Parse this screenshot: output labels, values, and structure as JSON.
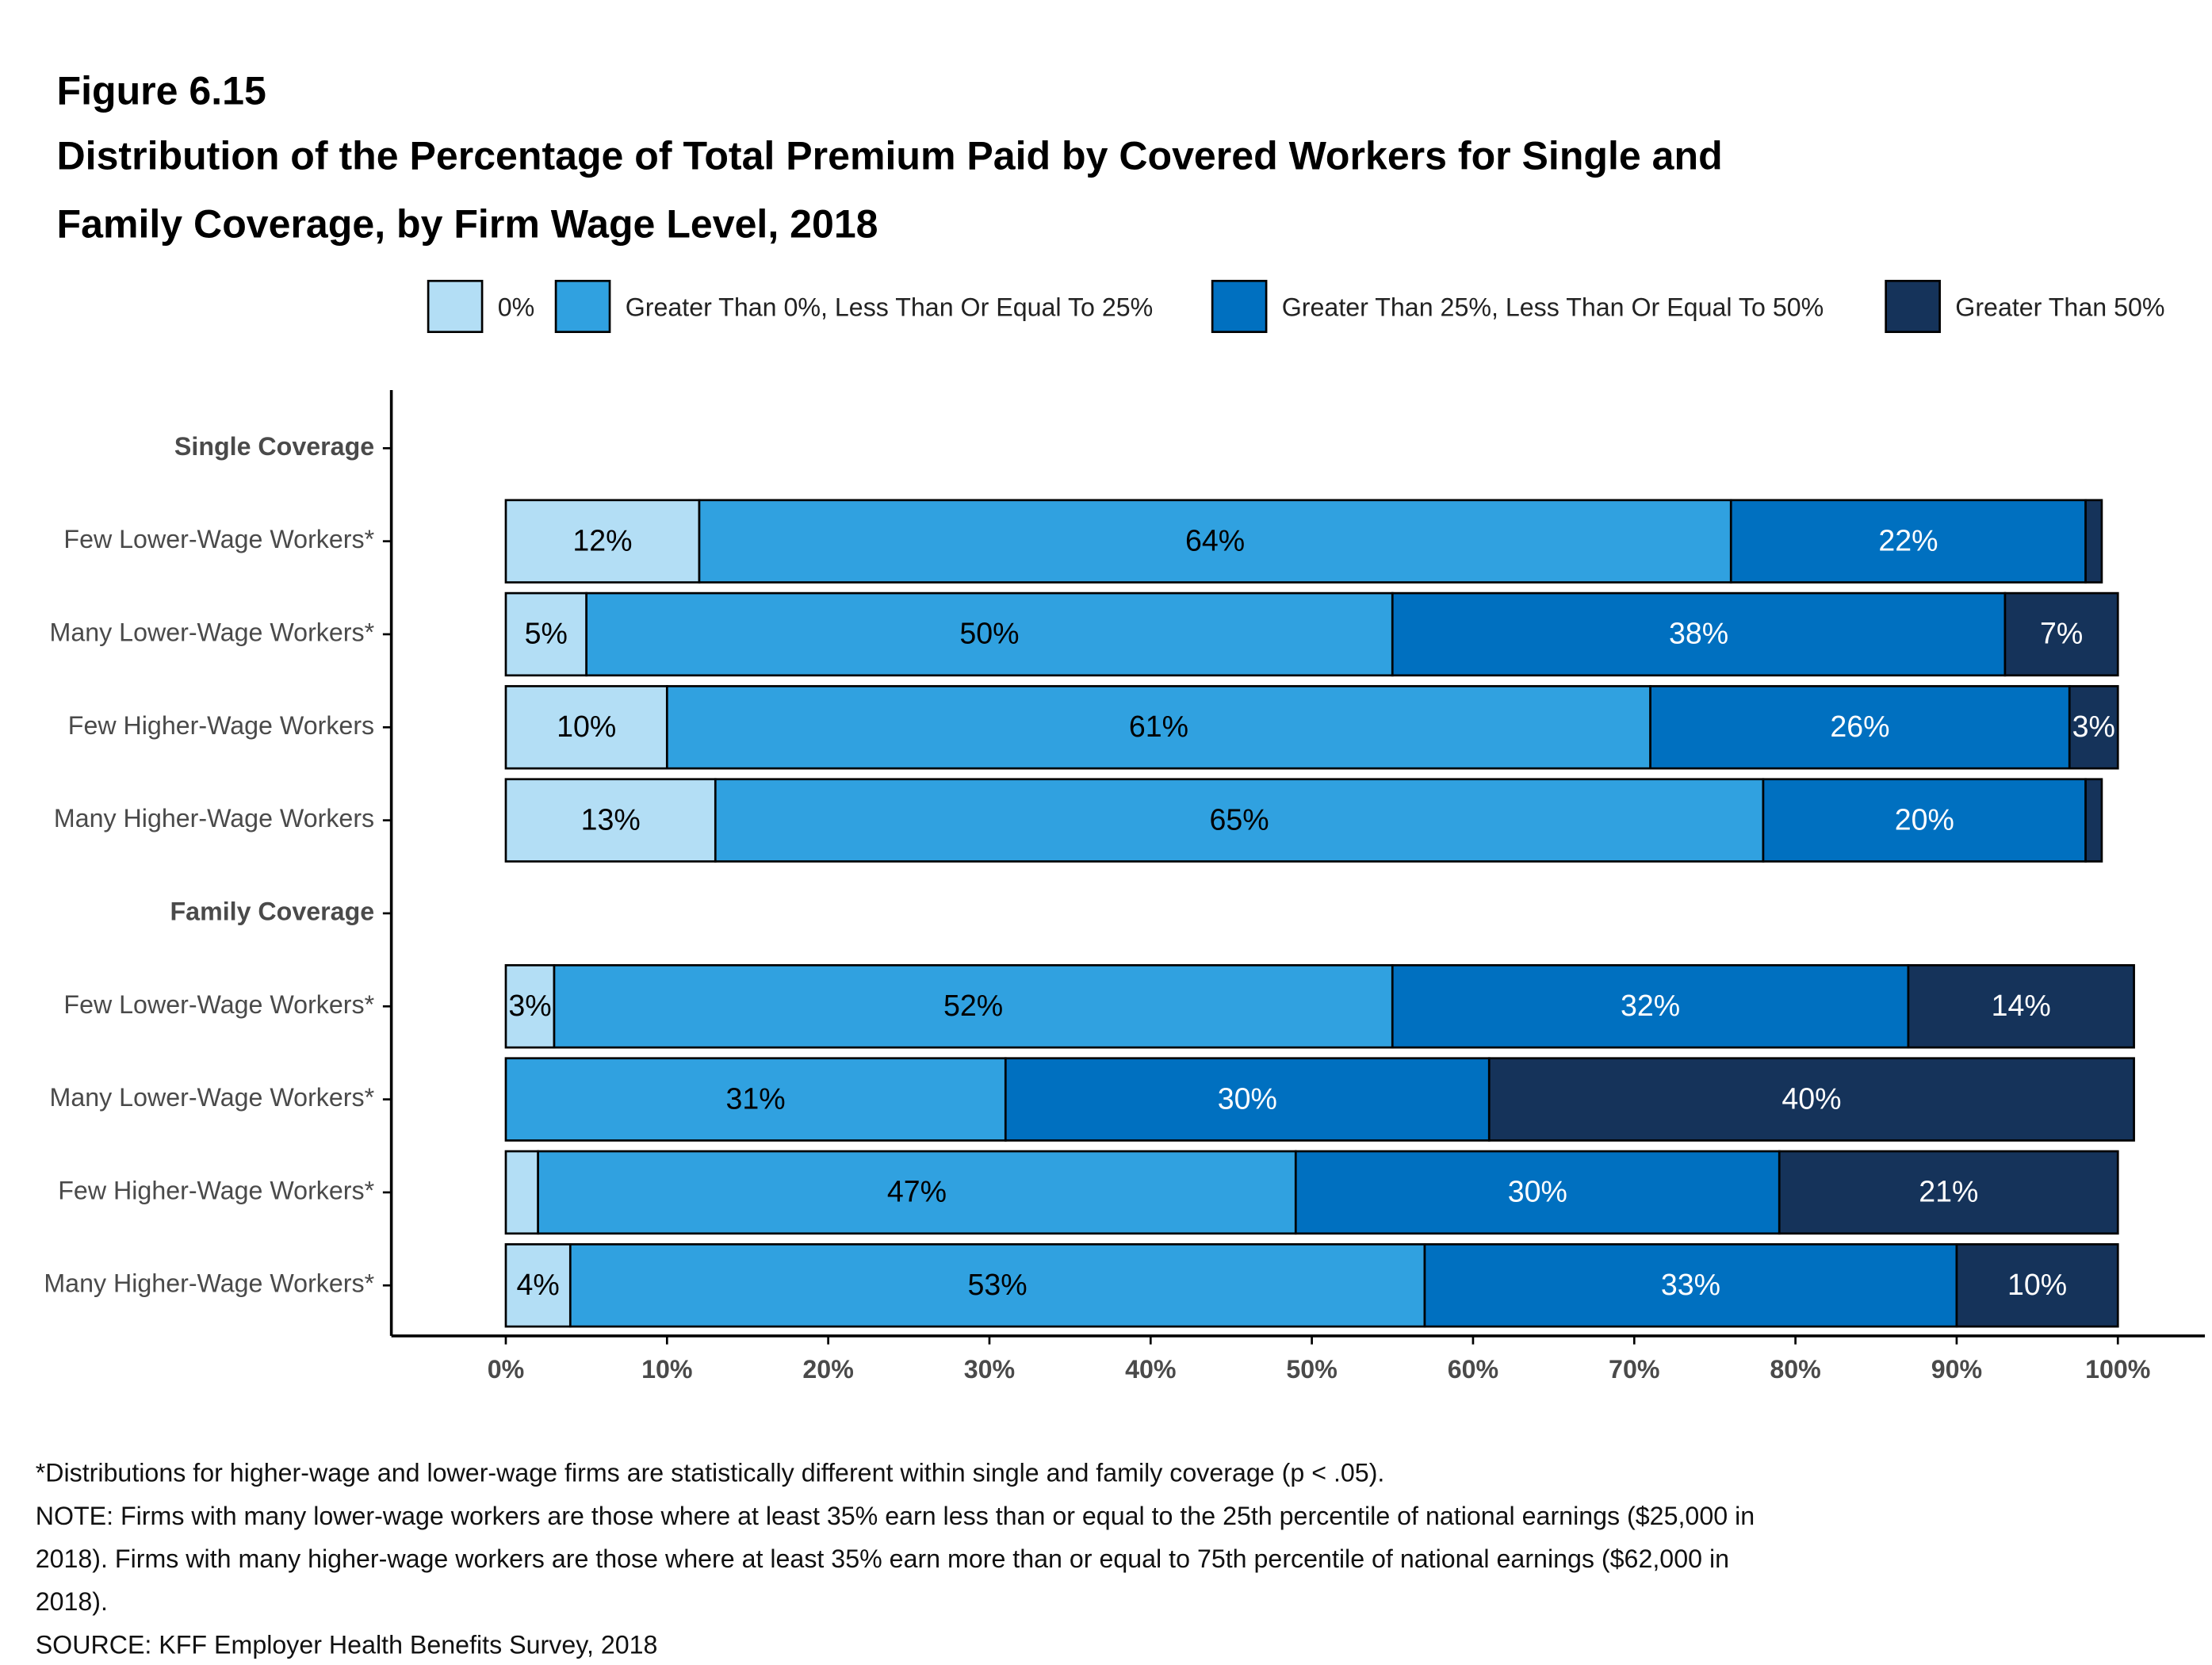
{
  "chart_data": {
    "type": "stacked-bar-horizontal",
    "figure_label": "Figure 6.15",
    "title": [
      "Distribution of the Percentage of Total Premium Paid by Covered Workers for Single and",
      "Family Coverage, by Firm Wage Level, 2018"
    ],
    "categories": [
      "Single Coverage",
      "Few Lower-Wage Workers*",
      "Many Lower-Wage Workers*",
      "Few Higher-Wage Workers",
      "Many Higher-Wage Workers",
      "Family Coverage",
      "Few Lower-Wage Workers*",
      "Many Lower-Wage Workers*",
      "Few Higher-Wage Workers*",
      "Many Higher-Wage Workers*"
    ],
    "group_headers": [
      "Single Coverage",
      "Family Coverage"
    ],
    "series": [
      {
        "name": "0%",
        "color": "#b3def5",
        "label_color": "#000000",
        "values": [
          null,
          12,
          5,
          10,
          13,
          null,
          3,
          0,
          2,
          4
        ],
        "value_labels": [
          null,
          "12%",
          "5%",
          "10%",
          "13%",
          null,
          "3%",
          null,
          null,
          "4%"
        ]
      },
      {
        "name": "Greater Than 0%, Less Than Or Equal To 25%",
        "color": "#30a1e0",
        "label_color": "#000000",
        "values": [
          null,
          64,
          50,
          61,
          65,
          null,
          52,
          31,
          47,
          53
        ],
        "value_labels": [
          null,
          "64%",
          "50%",
          "61%",
          "65%",
          null,
          "52%",
          "31%",
          "47%",
          "53%"
        ]
      },
      {
        "name": "Greater Than 25%, Less Than Or Equal To 50%",
        "color": "#0070c0",
        "label_color": "#ffffff",
        "values": [
          null,
          22,
          38,
          26,
          20,
          null,
          32,
          30,
          30,
          33
        ],
        "value_labels": [
          null,
          "22%",
          "38%",
          "26%",
          "20%",
          null,
          "32%",
          "30%",
          "30%",
          "33%"
        ]
      },
      {
        "name": "Greater Than 50%",
        "color": "#15335a",
        "label_color": "#ffffff",
        "values": [
          null,
          1,
          7,
          3,
          1,
          null,
          14,
          40,
          21,
          10
        ],
        "value_labels": [
          null,
          null,
          "7%",
          "3%",
          null,
          null,
          "14%",
          "40%",
          "21%",
          "10%"
        ]
      }
    ],
    "xlim": [
      -7.1,
      105.4
    ],
    "xticks": [
      {
        "value": 0,
        "label": "0%"
      },
      {
        "value": 10,
        "label": "10%"
      },
      {
        "value": 20,
        "label": "20%"
      },
      {
        "value": 30,
        "label": "30%"
      },
      {
        "value": 40,
        "label": "40%"
      },
      {
        "value": 50,
        "label": "50%"
      },
      {
        "value": 60,
        "label": "60%"
      },
      {
        "value": 70,
        "label": "70%"
      },
      {
        "value": 80,
        "label": "80%"
      },
      {
        "value": 90,
        "label": "90%"
      },
      {
        "value": 100,
        "label": "100%"
      }
    ],
    "legend_position": "top",
    "notes": [
      "*Distributions for higher-wage and lower-wage firms are statistically different within single and family coverage (p < .05).",
      "NOTE: Firms with many lower-wage workers are those where at least 35% earn less than or equal to the 25th percentile of national earnings ($25,000 in",
      "2018). Firms with many higher-wage workers are those where at least 35% earn more than or equal to 75th percentile of national earnings ($62,000 in",
      "2018).",
      "SOURCE: KFF Employer Health Benefits Survey, 2018"
    ]
  }
}
